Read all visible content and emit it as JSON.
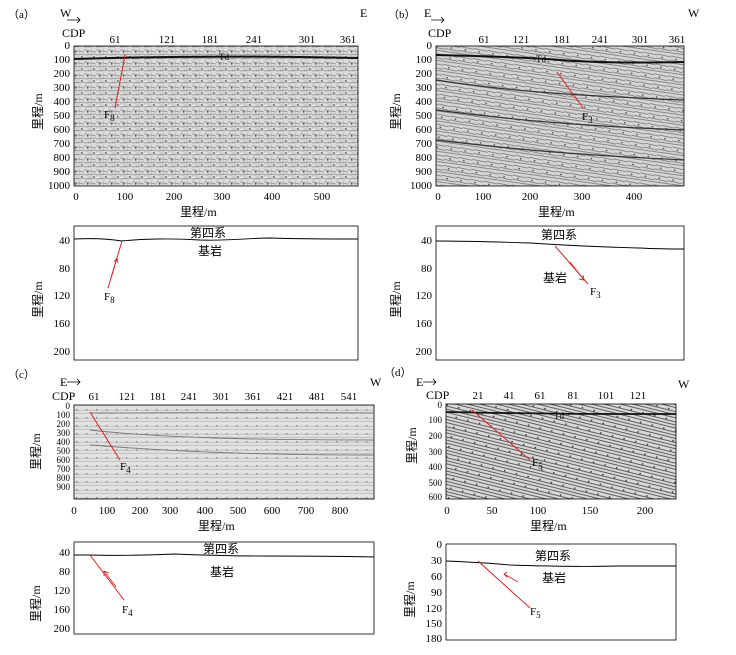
{
  "panels": [
    {
      "label": "（a）",
      "dir_left": "W",
      "dir_right": "E",
      "cdp_title": "CDP",
      "cdp_ticks": [
        "61",
        "121",
        "181",
        "241",
        "301",
        "361"
      ],
      "depth_ticks": [
        "0",
        "100",
        "200",
        "300",
        "400",
        "500",
        "600",
        "700",
        "800",
        "900",
        "1000"
      ],
      "dist_ticks": [
        "0",
        "100",
        "200",
        "300",
        "400",
        "500"
      ],
      "y_label": "里程/m",
      "x_label": "里程/m",
      "td_label": "Td",
      "fault_label": "F",
      "fault_sub": "8",
      "lower_ticks": [
        "40",
        "80",
        "120",
        "160",
        "200"
      ],
      "quaternary": "第四系",
      "bedrock": "基岩"
    },
    {
      "label": "（b）",
      "dir_left": "E",
      "dir_right": "W",
      "cdp_title": "CDP",
      "cdp_ticks": [
        "61",
        "121",
        "181",
        "241",
        "301",
        "361"
      ],
      "depth_ticks": [
        "0",
        "100",
        "200",
        "300",
        "400",
        "500",
        "600",
        "700",
        "800",
        "900",
        "1000"
      ],
      "dist_ticks": [
        "0",
        "100",
        "200",
        "300",
        "400"
      ],
      "y_label": "里程/m",
      "x_label": "里程/m",
      "td_label": "Td",
      "fault_label": "F",
      "fault_sub": "3",
      "lower_ticks": [
        "40",
        "80",
        "120",
        "160",
        "200"
      ],
      "quaternary": "第四系",
      "bedrock": "基岩"
    },
    {
      "label": "（c）",
      "dir_left": "E",
      "dir_right": "W",
      "cdp_title": "CDP",
      "cdp_ticks": [
        "61",
        "121",
        "181",
        "241",
        "301",
        "361",
        "421",
        "481",
        "541"
      ],
      "depth_ticks": [
        "0",
        "100",
        "200",
        "300",
        "400",
        "500",
        "600",
        "700",
        "800",
        "900"
      ],
      "dist_ticks": [
        "0",
        "100",
        "200",
        "300",
        "400",
        "500",
        "600",
        "700",
        "800"
      ],
      "y_label": "里程/m",
      "x_label": "里程/m",
      "fault_label": "F",
      "fault_sub": "4",
      "lower_ticks": [
        "40",
        "80",
        "120",
        "160",
        "200"
      ],
      "quaternary": "第四系",
      "bedrock": "基岩"
    },
    {
      "label": "（d）",
      "dir_left": "E",
      "dir_right": "W",
      "cdp_title": "CDP",
      "cdp_ticks": [
        "21",
        "41",
        "61",
        "81",
        "101",
        "121"
      ],
      "depth_ticks": [
        "0",
        "100",
        "200",
        "300",
        "400",
        "500",
        "600"
      ],
      "dist_ticks": [
        "0",
        "50",
        "100",
        "150",
        "200"
      ],
      "y_label": "里程/m",
      "x_label": "里程/m",
      "td_label": "Td",
      "fault_label": "F",
      "fault_sub": "5",
      "lower_ticks": [
        "0",
        "30",
        "60",
        "90",
        "120",
        "150",
        "180"
      ],
      "quaternary": "第四系",
      "bedrock": "基岩"
    }
  ]
}
